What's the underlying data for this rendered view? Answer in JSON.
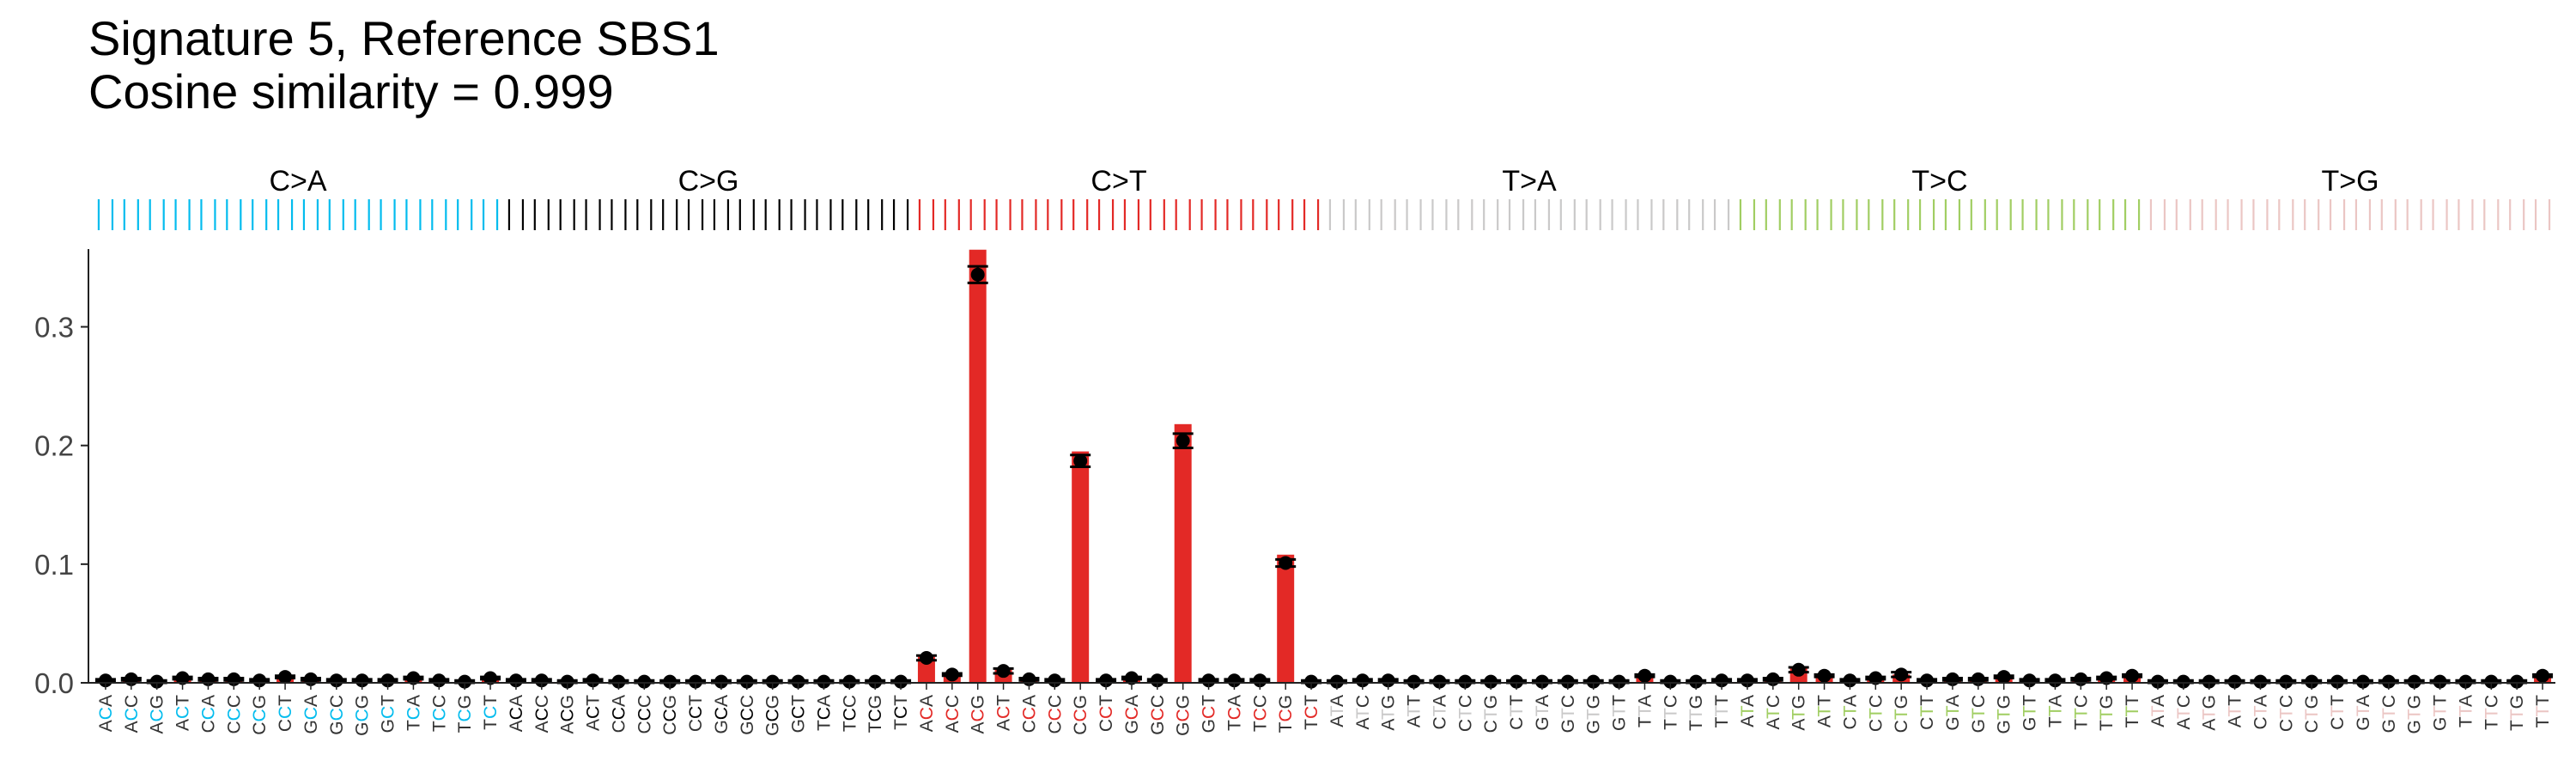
{
  "title": "Signature 5, Reference SBS1",
  "subtitle": "Cosine similarity = 0.999",
  "chart_data": {
    "type": "bar",
    "title": "Signature 5, Reference SBS1",
    "subtitle": "Cosine similarity = 0.999",
    "xlabel": "",
    "ylabel": "",
    "ylim": [
      0,
      0.38
    ],
    "yticks": [
      0.0,
      0.1,
      0.2,
      0.3
    ],
    "ytick_labels": [
      "0.0",
      "0.1",
      "0.2",
      "0.3"
    ],
    "grid": false,
    "groups": [
      {
        "label": "C>A",
        "color": "#03BCEE"
      },
      {
        "label": "C>G",
        "color": "#010101"
      },
      {
        "label": "C>T",
        "color": "#E32926"
      },
      {
        "label": "T>A",
        "color": "#CAC9C9"
      },
      {
        "label": "T>C",
        "color": "#A1CE63"
      },
      {
        "label": "T>G",
        "color": "#EBC6C4"
      }
    ],
    "contexts": [
      "ACA",
      "ACC",
      "ACG",
      "ACT",
      "CCA",
      "CCC",
      "CCG",
      "CCT",
      "GCA",
      "GCC",
      "GCG",
      "GCT",
      "TCA",
      "TCC",
      "TCG",
      "TCT"
    ],
    "t_contexts": [
      "ATA",
      "ATC",
      "ATG",
      "ATT",
      "CTA",
      "CTC",
      "CTG",
      "CTT",
      "GTA",
      "GTC",
      "GTG",
      "GTT",
      "TTA",
      "TTC",
      "TTG",
      "TTT"
    ],
    "series": [
      {
        "name": "Signature 5",
        "values": [
          0.002,
          0.004,
          0.001,
          0.004,
          0.003,
          0.004,
          0.002,
          0.005,
          0.003,
          0.002,
          0.002,
          0.002,
          0.004,
          0.002,
          0.001,
          0.004,
          0.002,
          0.002,
          0.001,
          0.002,
          0.001,
          0.001,
          0.001,
          0.001,
          0.001,
          0.001,
          0.001,
          0.001,
          0.001,
          0.001,
          0.001,
          0.001,
          0.022,
          0.007,
          0.365,
          0.012,
          0.003,
          0.002,
          0.195,
          0.002,
          0.004,
          0.002,
          0.218,
          0.002,
          0.002,
          0.002,
          0.108,
          0.001,
          0.001,
          0.002,
          0.002,
          0.001,
          0.001,
          0.001,
          0.001,
          0.001,
          0.001,
          0.001,
          0.001,
          0.001,
          0.006,
          0.001,
          0.001,
          0.002,
          0.002,
          0.003,
          0.012,
          0.006,
          0.002,
          0.004,
          0.007,
          0.002,
          0.003,
          0.003,
          0.005,
          0.002,
          0.002,
          0.003,
          0.004,
          0.006,
          0.001,
          0.001,
          0.001,
          0.001,
          0.001,
          0.001,
          0.001,
          0.001,
          0.001,
          0.001,
          0.001,
          0.001,
          0.001,
          0.001,
          0.001,
          0.006
        ]
      },
      {
        "name": "Reference SBS1",
        "values": [
          0.002,
          0.003,
          0.001,
          0.004,
          0.003,
          0.003,
          0.002,
          0.005,
          0.003,
          0.002,
          0.002,
          0.002,
          0.004,
          0.002,
          0.001,
          0.004,
          0.002,
          0.002,
          0.001,
          0.002,
          0.001,
          0.001,
          0.001,
          0.001,
          0.001,
          0.001,
          0.001,
          0.001,
          0.001,
          0.001,
          0.001,
          0.001,
          0.021,
          0.007,
          0.344,
          0.01,
          0.003,
          0.002,
          0.187,
          0.002,
          0.004,
          0.002,
          0.204,
          0.002,
          0.002,
          0.002,
          0.101,
          0.001,
          0.001,
          0.002,
          0.002,
          0.001,
          0.001,
          0.001,
          0.001,
          0.001,
          0.001,
          0.001,
          0.001,
          0.001,
          0.006,
          0.001,
          0.001,
          0.002,
          0.002,
          0.003,
          0.011,
          0.006,
          0.002,
          0.004,
          0.007,
          0.002,
          0.003,
          0.003,
          0.005,
          0.002,
          0.002,
          0.003,
          0.004,
          0.006,
          0.001,
          0.001,
          0.001,
          0.001,
          0.001,
          0.001,
          0.001,
          0.001,
          0.001,
          0.001,
          0.001,
          0.001,
          0.001,
          0.001,
          0.001,
          0.006
        ],
        "error": [
          0.001,
          0.001,
          0.001,
          0.001,
          0.001,
          0.001,
          0.001,
          0.001,
          0.001,
          0.001,
          0.001,
          0.001,
          0.001,
          0.001,
          0.001,
          0.001,
          0.001,
          0.001,
          0.001,
          0.001,
          0.001,
          0.001,
          0.001,
          0.001,
          0.001,
          0.001,
          0.001,
          0.001,
          0.001,
          0.001,
          0.001,
          0.001,
          0.002,
          0.001,
          0.007,
          0.002,
          0.001,
          0.001,
          0.005,
          0.001,
          0.001,
          0.001,
          0.006,
          0.001,
          0.001,
          0.001,
          0.003,
          0.001,
          0.001,
          0.001,
          0.001,
          0.001,
          0.001,
          0.001,
          0.001,
          0.001,
          0.001,
          0.001,
          0.001,
          0.001,
          0.001,
          0.001,
          0.001,
          0.001,
          0.001,
          0.001,
          0.002,
          0.001,
          0.001,
          0.001,
          0.002,
          0.001,
          0.001,
          0.001,
          0.001,
          0.001,
          0.001,
          0.001,
          0.001,
          0.001,
          0.001,
          0.001,
          0.001,
          0.001,
          0.001,
          0.001,
          0.001,
          0.001,
          0.001,
          0.001,
          0.001,
          0.001,
          0.001,
          0.001,
          0.001,
          0.001
        ]
      }
    ]
  }
}
